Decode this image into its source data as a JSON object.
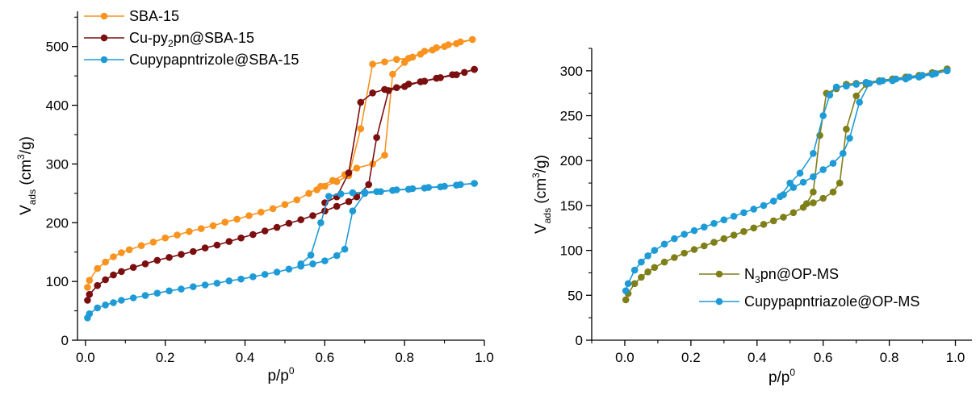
{
  "chart_data": [
    {
      "type": "line",
      "xlabel": "p/p0",
      "ylabel": "Vads (cm3/g)",
      "xlim": [
        -0.02,
        1.0
      ],
      "ylim": [
        0,
        560
      ],
      "xticks": [
        0.0,
        0.2,
        0.4,
        0.6,
        0.8,
        1.0
      ],
      "xtick_labels": [
        "0.0",
        "0.2",
        "0.4",
        "0.6",
        "0.8",
        "1.0"
      ],
      "yticks": [
        0,
        100,
        200,
        300,
        400,
        500
      ],
      "ytick_labels": [
        "0",
        "100",
        "200",
        "300",
        "400",
        "500"
      ],
      "legend_position": "top-left",
      "series": [
        {
          "name": "SBA-15",
          "color": "#f7931e",
          "adsorption": [
            [
              0.005,
              90
            ],
            [
              0.01,
              102
            ],
            [
              0.03,
              122
            ],
            [
              0.05,
              133
            ],
            [
              0.07,
              142
            ],
            [
              0.09,
              149
            ],
            [
              0.11,
              154
            ],
            [
              0.14,
              161
            ],
            [
              0.17,
              167
            ],
            [
              0.2,
              174
            ],
            [
              0.23,
              179
            ],
            [
              0.26,
              185
            ],
            [
              0.29,
              190
            ],
            [
              0.32,
              195
            ],
            [
              0.35,
              201
            ],
            [
              0.38,
              206
            ],
            [
              0.41,
              212
            ],
            [
              0.44,
              218
            ],
            [
              0.47,
              224
            ],
            [
              0.5,
              231
            ],
            [
              0.53,
              239
            ],
            [
              0.56,
              250
            ],
            [
              0.59,
              262
            ],
            [
              0.62,
              272
            ],
            [
              0.65,
              282
            ],
            [
              0.68,
              293
            ],
            [
              0.72,
              300
            ],
            [
              0.75,
              315
            ],
            [
              0.77,
              453
            ],
            [
              0.8,
              473
            ],
            [
              0.82,
              482
            ],
            [
              0.85,
              492
            ],
            [
              0.88,
              498
            ],
            [
              0.91,
              503
            ],
            [
              0.94,
              508
            ],
            [
              0.97,
              512
            ]
          ],
          "desorption": [
            [
              0.97,
              512
            ],
            [
              0.93,
              505
            ],
            [
              0.9,
              500
            ],
            [
              0.87,
              494
            ],
            [
              0.84,
              487
            ],
            [
              0.81,
              480
            ],
            [
              0.78,
              478
            ],
            [
              0.75,
              474
            ],
            [
              0.72,
              470
            ],
            [
              0.69,
              360
            ],
            [
              0.66,
              280
            ],
            [
              0.63,
              270
            ],
            [
              0.6,
              262
            ],
            [
              0.58,
              256
            ]
          ]
        },
        {
          "name": "Cu-py2pn@SBA-15",
          "name_parts": [
            "Cu-py",
            "2",
            "pn@SBA-15"
          ],
          "color": "#7b0e0e",
          "adsorption": [
            [
              0.005,
              68
            ],
            [
              0.01,
              78
            ],
            [
              0.03,
              93
            ],
            [
              0.05,
              103
            ],
            [
              0.07,
              111
            ],
            [
              0.09,
              117
            ],
            [
              0.12,
              124
            ],
            [
              0.15,
              130
            ],
            [
              0.18,
              136
            ],
            [
              0.21,
              141
            ],
            [
              0.24,
              146
            ],
            [
              0.27,
              151
            ],
            [
              0.3,
              157
            ],
            [
              0.33,
              162
            ],
            [
              0.36,
              168
            ],
            [
              0.39,
              174
            ],
            [
              0.42,
              180
            ],
            [
              0.45,
              186
            ],
            [
              0.48,
              192
            ],
            [
              0.51,
              199
            ],
            [
              0.54,
              205
            ],
            [
              0.57,
              212
            ],
            [
              0.6,
              220
            ],
            [
              0.63,
              228
            ],
            [
              0.66,
              236
            ],
            [
              0.68,
              244
            ],
            [
              0.71,
              265
            ],
            [
              0.73,
              345
            ],
            [
              0.76,
              425
            ],
            [
              0.8,
              432
            ],
            [
              0.84,
              440
            ],
            [
              0.88,
              446
            ],
            [
              0.92,
              452
            ],
            [
              0.95,
              456
            ],
            [
              0.975,
              461
            ]
          ],
          "desorption": [
            [
              0.975,
              461
            ],
            [
              0.93,
              452
            ],
            [
              0.89,
              447
            ],
            [
              0.85,
              441
            ],
            [
              0.81,
              436
            ],
            [
              0.78,
              430
            ],
            [
              0.75,
              427
            ],
            [
              0.72,
              421
            ],
            [
              0.69,
              405
            ],
            [
              0.66,
              285
            ],
            [
              0.63,
              244
            ],
            [
              0.6,
              234
            ]
          ]
        },
        {
          "name": "Cupypapntrizole@SBA-15",
          "color": "#1e9bd7",
          "adsorption": [
            [
              0.005,
              38
            ],
            [
              0.01,
              45
            ],
            [
              0.03,
              55
            ],
            [
              0.05,
              60
            ],
            [
              0.07,
              64
            ],
            [
              0.09,
              68
            ],
            [
              0.12,
              72
            ],
            [
              0.15,
              76
            ],
            [
              0.18,
              80
            ],
            [
              0.21,
              84
            ],
            [
              0.24,
              87
            ],
            [
              0.27,
              91
            ],
            [
              0.3,
              94
            ],
            [
              0.33,
              97
            ],
            [
              0.36,
              101
            ],
            [
              0.39,
              104
            ],
            [
              0.42,
              108
            ],
            [
              0.45,
              112
            ],
            [
              0.48,
              116
            ],
            [
              0.51,
              121
            ],
            [
              0.54,
              126
            ],
            [
              0.57,
              130
            ],
            [
              0.6,
              135
            ],
            [
              0.63,
              144
            ],
            [
              0.65,
              155
            ],
            [
              0.67,
              220
            ],
            [
              0.7,
              250
            ],
            [
              0.74,
              253
            ],
            [
              0.78,
              256
            ],
            [
              0.82,
              258
            ],
            [
              0.86,
              260
            ],
            [
              0.9,
              262
            ],
            [
              0.94,
              265
            ],
            [
              0.975,
              267
            ]
          ],
          "desorption": [
            [
              0.975,
              267
            ],
            [
              0.93,
              264
            ],
            [
              0.89,
              261
            ],
            [
              0.85,
              259
            ],
            [
              0.81,
              257
            ],
            [
              0.77,
              255
            ],
            [
              0.73,
              253
            ],
            [
              0.7,
              252
            ],
            [
              0.67,
              251
            ],
            [
              0.64,
              249
            ],
            [
              0.61,
              245
            ],
            [
              0.59,
              200
            ],
            [
              0.565,
              145
            ],
            [
              0.54,
              130
            ]
          ]
        }
      ]
    },
    {
      "type": "line",
      "xlabel": "p/p0",
      "ylabel": "Vads (cm3/g)",
      "xlim": [
        -0.1,
        1.05
      ],
      "ylim": [
        0,
        325
      ],
      "xticks": [
        0.0,
        0.2,
        0.4,
        0.6,
        0.8,
        1.0
      ],
      "xtick_labels": [
        "0.0",
        "0.2",
        "0.4",
        "0.6",
        "0.8",
        "1.0"
      ],
      "yticks": [
        0,
        50,
        100,
        150,
        200,
        250,
        300
      ],
      "ytick_labels": [
        "0",
        "50",
        "100",
        "150",
        "200",
        "250",
        "300"
      ],
      "legend_position": "bottom-right",
      "series": [
        {
          "name": "N3pn@OP-MS",
          "name_parts": [
            "N",
            "3",
            "pn@OP-MS"
          ],
          "color": "#7f7f1a",
          "adsorption": [
            [
              0.003,
              45
            ],
            [
              0.01,
              52
            ],
            [
              0.03,
              63
            ],
            [
              0.05,
              70
            ],
            [
              0.07,
              76
            ],
            [
              0.09,
              81
            ],
            [
              0.12,
              87
            ],
            [
              0.15,
              92
            ],
            [
              0.18,
              97
            ],
            [
              0.21,
              101
            ],
            [
              0.24,
              105
            ],
            [
              0.27,
              109
            ],
            [
              0.3,
              113
            ],
            [
              0.33,
              117
            ],
            [
              0.36,
              121
            ],
            [
              0.39,
              125
            ],
            [
              0.42,
              129
            ],
            [
              0.45,
              133
            ],
            [
              0.48,
              137
            ],
            [
              0.51,
              142
            ],
            [
              0.54,
              148
            ],
            [
              0.57,
              153
            ],
            [
              0.6,
              158
            ],
            [
              0.63,
              165
            ],
            [
              0.65,
              175
            ],
            [
              0.67,
              235
            ],
            [
              0.7,
              272
            ],
            [
              0.73,
              285
            ],
            [
              0.77,
              288
            ],
            [
              0.81,
              290
            ],
            [
              0.85,
              292
            ],
            [
              0.89,
              294
            ],
            [
              0.93,
              297
            ],
            [
              0.975,
              302
            ]
          ],
          "desorption": [
            [
              0.975,
              302
            ],
            [
              0.93,
              298
            ],
            [
              0.89,
              295
            ],
            [
              0.85,
              293
            ],
            [
              0.81,
              291
            ],
            [
              0.77,
              289
            ],
            [
              0.73,
              287
            ],
            [
              0.7,
              286
            ],
            [
              0.67,
              285
            ],
            [
              0.64,
              280
            ],
            [
              0.61,
              275
            ],
            [
              0.59,
              228
            ],
            [
              0.57,
              165
            ],
            [
              0.55,
              152
            ]
          ]
        },
        {
          "name": "Cupypapntriazole@OP-MS",
          "color": "#1e9bd7",
          "adsorption": [
            [
              0.003,
              55
            ],
            [
              0.01,
              63
            ],
            [
              0.03,
              78
            ],
            [
              0.05,
              87
            ],
            [
              0.07,
              94
            ],
            [
              0.09,
              100
            ],
            [
              0.12,
              107
            ],
            [
              0.15,
              113
            ],
            [
              0.18,
              118
            ],
            [
              0.21,
              122
            ],
            [
              0.24,
              126
            ],
            [
              0.27,
              130
            ],
            [
              0.3,
              134
            ],
            [
              0.33,
              138
            ],
            [
              0.36,
              142
            ],
            [
              0.39,
              146
            ],
            [
              0.42,
              150
            ],
            [
              0.45,
              155
            ],
            [
              0.48,
              162
            ],
            [
              0.51,
              170
            ],
            [
              0.54,
              176
            ],
            [
              0.57,
              182
            ],
            [
              0.6,
              190
            ],
            [
              0.63,
              197
            ],
            [
              0.66,
              208
            ],
            [
              0.68,
              225
            ],
            [
              0.71,
              265
            ],
            [
              0.74,
              286
            ],
            [
              0.78,
              289
            ],
            [
              0.82,
              291
            ],
            [
              0.86,
              293
            ],
            [
              0.9,
              295
            ],
            [
              0.94,
              297
            ],
            [
              0.975,
              300
            ]
          ],
          "desorption": [
            [
              0.975,
              300
            ],
            [
              0.93,
              296
            ],
            [
              0.89,
              293
            ],
            [
              0.85,
              291
            ],
            [
              0.81,
              289
            ],
            [
              0.77,
              288
            ],
            [
              0.73,
              287
            ],
            [
              0.7,
              285
            ],
            [
              0.67,
              283
            ],
            [
              0.64,
              282
            ],
            [
              0.62,
              273
            ],
            [
              0.6,
              250
            ],
            [
              0.57,
              208
            ],
            [
              0.53,
              186
            ],
            [
              0.5,
              175
            ],
            [
              0.47,
              160
            ]
          ]
        }
      ]
    }
  ]
}
